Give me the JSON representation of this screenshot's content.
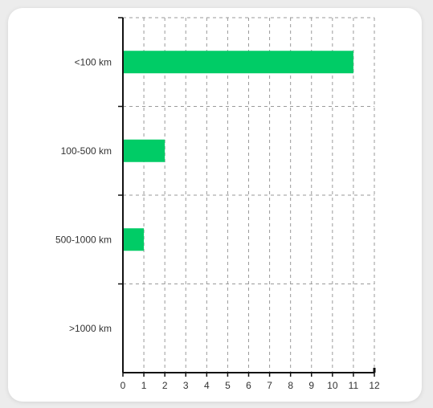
{
  "chart_data": {
    "type": "bar",
    "orientation": "horizontal",
    "categories": [
      "<100 km",
      "100-500 km",
      "500-1000 km",
      ">1000 km"
    ],
    "values": [
      11,
      2,
      1,
      0
    ],
    "xlim": [
      0,
      12
    ],
    "xticks": [
      0,
      1,
      2,
      3,
      4,
      5,
      6,
      7,
      8,
      9,
      10,
      11,
      12
    ],
    "grid": true,
    "grid_style": "dashed",
    "bar_color": "#00cc66",
    "title": "",
    "xlabel": "",
    "ylabel": ""
  }
}
